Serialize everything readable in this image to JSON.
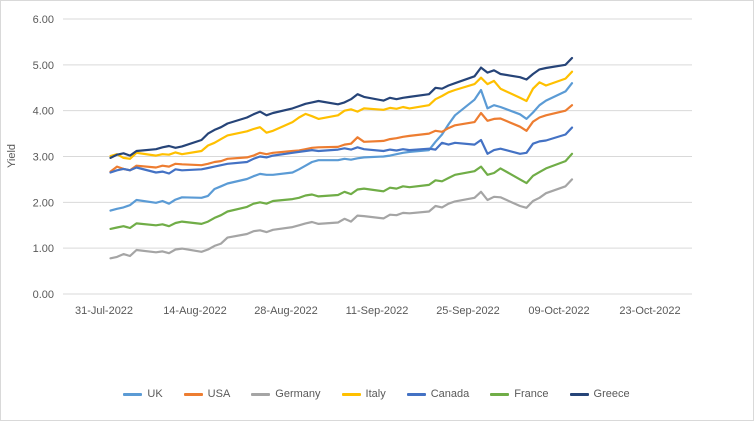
{
  "figure": {
    "background": "#FFFFFF",
    "border_color": "#D9D9D9",
    "gridline_color": "#D9D9D9",
    "text_color": "#595959"
  },
  "chart_data": {
    "type": "line",
    "title": "",
    "xlabel": "",
    "ylabel": "Yield",
    "ylim": [
      0,
      6
    ],
    "ytick_step": 1.0,
    "ytick_labels": [
      "0.00",
      "1.00",
      "2.00",
      "3.00",
      "4.00",
      "5.00",
      "6.00"
    ],
    "xtick_labels": [
      "31-Jul-2022",
      "14-Aug-2022",
      "28-Aug-2022",
      "11-Sep-2022",
      "25-Sep-2022",
      "09-Oct-2022",
      "23-Oct-2022"
    ],
    "xtick_day_offsets": [
      0,
      14,
      28,
      42,
      56,
      70,
      84
    ],
    "grid": "horizontal",
    "legend_position": "bottom",
    "x_dates": [
      "01-Aug-2022",
      "02-Aug-2022",
      "03-Aug-2022",
      "04-Aug-2022",
      "05-Aug-2022",
      "08-Aug-2022",
      "09-Aug-2022",
      "10-Aug-2022",
      "11-Aug-2022",
      "12-Aug-2022",
      "15-Aug-2022",
      "16-Aug-2022",
      "17-Aug-2022",
      "18-Aug-2022",
      "19-Aug-2022",
      "22-Aug-2022",
      "23-Aug-2022",
      "24-Aug-2022",
      "25-Aug-2022",
      "26-Aug-2022",
      "29-Aug-2022",
      "30-Aug-2022",
      "31-Aug-2022",
      "01-Sep-2022",
      "02-Sep-2022",
      "05-Sep-2022",
      "06-Sep-2022",
      "07-Sep-2022",
      "08-Sep-2022",
      "09-Sep-2022",
      "12-Sep-2022",
      "13-Sep-2022",
      "14-Sep-2022",
      "15-Sep-2022",
      "16-Sep-2022",
      "19-Sep-2022",
      "20-Sep-2022",
      "21-Sep-2022",
      "22-Sep-2022",
      "23-Sep-2022",
      "26-Sep-2022",
      "27-Sep-2022",
      "28-Sep-2022",
      "29-Sep-2022",
      "30-Sep-2022",
      "03-Oct-2022",
      "04-Oct-2022",
      "05-Oct-2022",
      "06-Oct-2022",
      "07-Oct-2022",
      "10-Oct-2022",
      "11-Oct-2022"
    ],
    "x_day_offsets": [
      1,
      2,
      3,
      4,
      5,
      8,
      9,
      10,
      11,
      12,
      15,
      16,
      17,
      18,
      19,
      22,
      23,
      24,
      25,
      26,
      29,
      30,
      31,
      32,
      33,
      36,
      37,
      38,
      39,
      40,
      43,
      44,
      45,
      46,
      47,
      50,
      51,
      52,
      53,
      54,
      57,
      58,
      59,
      60,
      61,
      64,
      65,
      66,
      67,
      68,
      71,
      72
    ],
    "series": [
      {
        "name": "UK",
        "color": "#5B9BD5",
        "values": [
          1.82,
          1.86,
          1.89,
          1.94,
          2.05,
          1.99,
          2.03,
          1.97,
          2.06,
          2.11,
          2.1,
          2.14,
          2.29,
          2.35,
          2.41,
          2.51,
          2.57,
          2.62,
          2.6,
          2.6,
          2.65,
          2.72,
          2.8,
          2.88,
          2.92,
          2.92,
          2.95,
          2.93,
          2.96,
          2.98,
          3.0,
          3.02,
          3.05,
          3.08,
          3.1,
          3.14,
          3.32,
          3.48,
          3.7,
          3.9,
          4.24,
          4.45,
          4.05,
          4.12,
          4.08,
          3.92,
          3.82,
          3.96,
          4.12,
          4.22,
          4.42,
          4.6
        ]
      },
      {
        "name": "USA",
        "color": "#ED7D31",
        "values": [
          2.67,
          2.78,
          2.73,
          2.7,
          2.8,
          2.76,
          2.8,
          2.78,
          2.84,
          2.83,
          2.81,
          2.84,
          2.88,
          2.9,
          2.95,
          2.98,
          3.02,
          3.08,
          3.05,
          3.08,
          3.12,
          3.13,
          3.16,
          3.19,
          3.2,
          3.21,
          3.26,
          3.28,
          3.42,
          3.32,
          3.34,
          3.38,
          3.4,
          3.43,
          3.45,
          3.5,
          3.56,
          3.54,
          3.62,
          3.68,
          3.75,
          3.95,
          3.78,
          3.82,
          3.83,
          3.65,
          3.56,
          3.76,
          3.85,
          3.9,
          4.0,
          4.12
        ]
      },
      {
        "name": "Germany",
        "color": "#A5A5A5",
        "values": [
          0.78,
          0.81,
          0.87,
          0.83,
          0.96,
          0.91,
          0.93,
          0.89,
          0.97,
          0.99,
          0.92,
          0.97,
          1.05,
          1.1,
          1.23,
          1.31,
          1.37,
          1.39,
          1.35,
          1.4,
          1.46,
          1.5,
          1.54,
          1.57,
          1.53,
          1.56,
          1.64,
          1.58,
          1.71,
          1.7,
          1.65,
          1.73,
          1.72,
          1.77,
          1.76,
          1.8,
          1.92,
          1.89,
          1.97,
          2.02,
          2.1,
          2.23,
          2.05,
          2.12,
          2.11,
          1.92,
          1.88,
          2.03,
          2.1,
          2.2,
          2.35,
          2.5
        ]
      },
      {
        "name": "Italy",
        "color": "#FFC000",
        "values": [
          3.01,
          3.05,
          2.97,
          2.95,
          3.08,
          3.02,
          3.05,
          3.04,
          3.09,
          3.05,
          3.12,
          3.24,
          3.3,
          3.38,
          3.46,
          3.55,
          3.6,
          3.64,
          3.52,
          3.56,
          3.75,
          3.85,
          3.93,
          3.88,
          3.82,
          3.9,
          4.0,
          4.03,
          3.98,
          4.05,
          4.02,
          4.06,
          4.04,
          4.08,
          4.05,
          4.12,
          4.25,
          4.32,
          4.4,
          4.45,
          4.58,
          4.72,
          4.58,
          4.65,
          4.48,
          4.28,
          4.21,
          4.48,
          4.62,
          4.55,
          4.7,
          4.85
        ]
      },
      {
        "name": "Canada",
        "color": "#4472C4",
        "values": [
          2.65,
          2.7,
          2.73,
          2.7,
          2.76,
          2.65,
          2.67,
          2.63,
          2.72,
          2.7,
          2.72,
          2.75,
          2.78,
          2.81,
          2.84,
          2.88,
          2.95,
          3.0,
          2.98,
          3.02,
          3.08,
          3.1,
          3.12,
          3.14,
          3.12,
          3.15,
          3.18,
          3.15,
          3.2,
          3.16,
          3.12,
          3.15,
          3.13,
          3.16,
          3.14,
          3.17,
          3.15,
          3.3,
          3.26,
          3.3,
          3.26,
          3.36,
          3.06,
          3.14,
          3.17,
          3.06,
          3.08,
          3.28,
          3.33,
          3.35,
          3.48,
          3.63
        ]
      },
      {
        "name": "France",
        "color": "#70AD47",
        "values": [
          1.42,
          1.45,
          1.48,
          1.44,
          1.54,
          1.5,
          1.52,
          1.48,
          1.55,
          1.58,
          1.53,
          1.58,
          1.66,
          1.72,
          1.8,
          1.9,
          1.97,
          2.0,
          1.97,
          2.03,
          2.07,
          2.1,
          2.15,
          2.17,
          2.13,
          2.16,
          2.23,
          2.18,
          2.28,
          2.3,
          2.24,
          2.32,
          2.3,
          2.35,
          2.33,
          2.38,
          2.48,
          2.46,
          2.53,
          2.6,
          2.68,
          2.78,
          2.6,
          2.64,
          2.74,
          2.5,
          2.42,
          2.58,
          2.66,
          2.74,
          2.9,
          3.06
        ]
      },
      {
        "name": "Greece",
        "color": "#264478",
        "values": [
          2.97,
          3.04,
          3.07,
          3.02,
          3.12,
          3.16,
          3.2,
          3.23,
          3.19,
          3.22,
          3.36,
          3.5,
          3.58,
          3.64,
          3.72,
          3.85,
          3.92,
          3.98,
          3.9,
          3.95,
          4.05,
          4.1,
          4.15,
          4.18,
          4.21,
          4.14,
          4.18,
          4.25,
          4.36,
          4.3,
          4.22,
          4.28,
          4.25,
          4.28,
          4.3,
          4.36,
          4.5,
          4.48,
          4.55,
          4.6,
          4.75,
          4.94,
          4.83,
          4.88,
          4.8,
          4.73,
          4.68,
          4.8,
          4.9,
          4.93,
          5.0,
          5.15
        ]
      }
    ]
  }
}
